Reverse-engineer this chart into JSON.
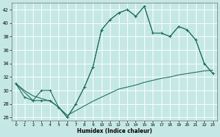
{
  "xlabel": "Humidex (Indice chaleur)",
  "xlim": [
    -0.5,
    23.5
  ],
  "ylim": [
    25.5,
    43
  ],
  "yticks": [
    26,
    28,
    30,
    32,
    34,
    36,
    38,
    40,
    42
  ],
  "xticks": [
    0,
    1,
    2,
    3,
    4,
    5,
    6,
    7,
    8,
    9,
    10,
    11,
    12,
    13,
    14,
    15,
    16,
    17,
    18,
    19,
    20,
    21,
    22,
    23
  ],
  "bg_color": "#c5e8e6",
  "line_color": "#1a6b5a",
  "grid_color": "#ffffff",
  "line1_x": [
    0,
    1,
    2,
    3,
    4,
    5,
    6,
    7,
    8,
    9,
    10,
    11,
    12,
    13,
    14,
    15,
    16,
    17,
    18,
    19,
    20,
    21,
    22,
    23
  ],
  "line1_y": [
    31.0,
    29.0,
    28.5,
    28.5,
    28.5,
    27.5,
    26.0,
    28.0,
    30.5,
    33.5,
    39.0,
    40.5,
    41.5,
    42.0,
    41.0,
    42.5,
    38.5,
    38.5,
    38.0,
    39.5,
    39.0,
    37.5,
    34.0,
    32.5
  ],
  "line2_x": [
    0,
    2,
    3,
    4,
    5,
    6,
    7,
    8,
    9,
    10,
    11,
    12,
    13,
    14,
    15,
    16,
    17,
    18,
    19,
    20,
    21,
    22,
    23
  ],
  "line2_y": [
    31.0,
    28.5,
    30.0,
    30.0,
    27.5,
    26.0,
    28.0,
    30.5,
    33.5,
    39.0,
    40.5,
    41.5,
    42.0,
    41.0,
    42.5,
    38.5,
    38.5,
    38.0,
    39.5,
    39.0,
    37.5,
    34.0,
    32.5
  ],
  "line3_x": [
    0,
    1,
    2,
    3,
    4,
    5,
    6,
    7,
    8,
    9,
    10,
    11,
    12,
    13,
    14,
    15,
    16,
    17,
    18,
    19,
    20,
    21,
    22,
    23
  ],
  "line3_y": [
    31.0,
    30.0,
    29.2,
    28.8,
    28.4,
    27.5,
    26.3,
    27.0,
    27.7,
    28.4,
    29.0,
    29.6,
    30.2,
    30.5,
    30.8,
    31.2,
    31.5,
    31.8,
    32.0,
    32.3,
    32.5,
    32.7,
    32.9,
    33.0
  ]
}
